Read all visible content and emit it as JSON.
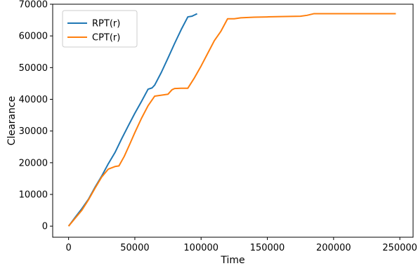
{
  "chart_data": {
    "type": "line",
    "title": "",
    "xlabel": "Time",
    "ylabel": "Clearance",
    "xlim": [
      -12000,
      260000
    ],
    "ylim": [
      -3500,
      70000
    ],
    "x_ticks": [
      0,
      50000,
      100000,
      150000,
      200000,
      250000
    ],
    "x_tick_labels": [
      "0",
      "50000",
      "100000",
      "150000",
      "200000",
      "250000"
    ],
    "y_ticks": [
      0,
      10000,
      20000,
      30000,
      40000,
      50000,
      60000,
      70000
    ],
    "y_tick_labels": [
      "0",
      "10000",
      "20000",
      "30000",
      "40000",
      "50000",
      "60000",
      "70000"
    ],
    "grid": false,
    "legend_position": "top-left",
    "series": [
      {
        "name": "RPT(r)",
        "color": "#1f77b4",
        "x": [
          0,
          5000,
          10000,
          15000,
          20000,
          25000,
          30000,
          35000,
          40000,
          45000,
          50000,
          55000,
          60000,
          63000,
          65000,
          70000,
          75000,
          80000,
          85000,
          90000,
          93000,
          95000,
          97000
        ],
        "y": [
          0,
          2800,
          5500,
          8500,
          12300,
          15800,
          19700,
          23200,
          27500,
          31600,
          35600,
          39300,
          43200,
          43600,
          44500,
          48500,
          53000,
          57600,
          62000,
          66000,
          66200,
          66600,
          67000
        ]
      },
      {
        "name": "CPT(r)",
        "color": "#ff7f0e",
        "x": [
          0,
          5000,
          10000,
          15000,
          20000,
          25000,
          30000,
          35000,
          38000,
          42000,
          46000,
          50000,
          55000,
          60000,
          65000,
          70000,
          75000,
          78000,
          80000,
          85000,
          90000,
          95000,
          100000,
          105000,
          110000,
          115000,
          120000,
          125000,
          130000,
          140000,
          150000,
          160000,
          175000,
          180000,
          185000,
          200000,
          220000,
          247000
        ],
        "y": [
          0,
          2500,
          5000,
          8300,
          12000,
          15500,
          18000,
          18800,
          19000,
          22000,
          25700,
          29500,
          34000,
          38000,
          41000,
          41300,
          41600,
          43000,
          43400,
          43500,
          43500,
          46800,
          50500,
          54500,
          58500,
          61500,
          65400,
          65400,
          65700,
          65900,
          66000,
          66100,
          66200,
          66500,
          67000,
          67000,
          67000,
          67000
        ]
      }
    ]
  }
}
